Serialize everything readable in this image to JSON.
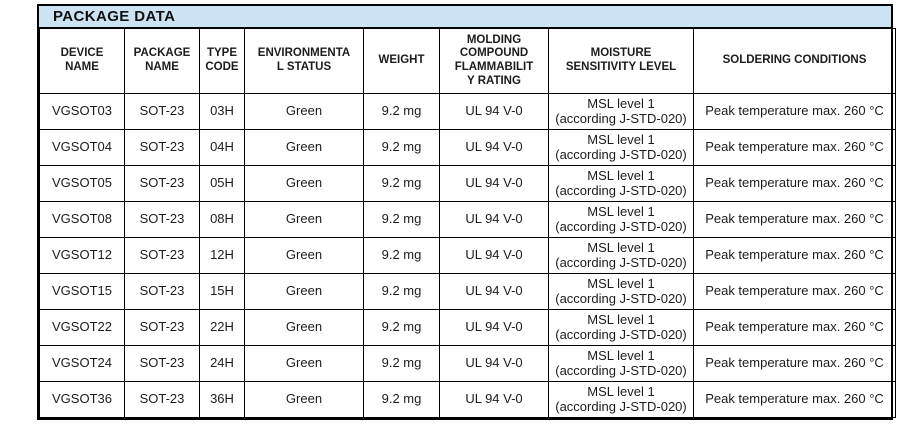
{
  "title": "PACKAGE DATA",
  "colors": {
    "title_bg": "#cbe3f2",
    "border": "#000000",
    "text": "#1c1c1c"
  },
  "table": {
    "columns": [
      {
        "key": "device_name",
        "label": "DEVICE\nNAME"
      },
      {
        "key": "package_name",
        "label": "PACKAGE\nNAME"
      },
      {
        "key": "type_code",
        "label": "TYPE\nCODE"
      },
      {
        "key": "environmental_status",
        "label": "ENVIRONMENTA\nL STATUS"
      },
      {
        "key": "weight",
        "label": "WEIGHT"
      },
      {
        "key": "flammability",
        "label": "MOLDING\nCOMPOUND\nFLAMMABILIT\nY RATING"
      },
      {
        "key": "moisture",
        "label": "MOISTURE\nSENSITIVITY LEVEL"
      },
      {
        "key": "soldering",
        "label": "SOLDERING CONDITIONS"
      }
    ],
    "rows": [
      {
        "device_name": "VGSOT03",
        "package_name": "SOT-23",
        "type_code": "03H",
        "environmental_status": "Green",
        "weight": "9.2 mg",
        "flammability": "UL 94 V-0",
        "moisture": "MSL level 1\n(according J-STD-020)",
        "soldering": "Peak temperature max. 260 °C"
      },
      {
        "device_name": "VGSOT04",
        "package_name": "SOT-23",
        "type_code": "04H",
        "environmental_status": "Green",
        "weight": "9.2 mg",
        "flammability": "UL 94 V-0",
        "moisture": "MSL level 1\n(according J-STD-020)",
        "soldering": "Peak temperature max. 260 °C"
      },
      {
        "device_name": "VGSOT05",
        "package_name": "SOT-23",
        "type_code": "05H",
        "environmental_status": "Green",
        "weight": "9.2 mg",
        "flammability": "UL 94 V-0",
        "moisture": "MSL level 1\n(according J-STD-020)",
        "soldering": "Peak temperature max. 260 °C"
      },
      {
        "device_name": "VGSOT08",
        "package_name": "SOT-23",
        "type_code": "08H",
        "environmental_status": "Green",
        "weight": "9.2 mg",
        "flammability": "UL 94 V-0",
        "moisture": "MSL level 1\n(according J-STD-020)",
        "soldering": "Peak temperature max. 260 °C"
      },
      {
        "device_name": "VGSOT12",
        "package_name": "SOT-23",
        "type_code": "12H",
        "environmental_status": "Green",
        "weight": "9.2 mg",
        "flammability": "UL 94 V-0",
        "moisture": "MSL level 1\n(according J-STD-020)",
        "soldering": "Peak temperature max. 260 °C"
      },
      {
        "device_name": "VGSOT15",
        "package_name": "SOT-23",
        "type_code": "15H",
        "environmental_status": "Green",
        "weight": "9.2 mg",
        "flammability": "UL 94 V-0",
        "moisture": "MSL level 1\n(according J-STD-020)",
        "soldering": "Peak temperature max. 260 °C"
      },
      {
        "device_name": "VGSOT22",
        "package_name": "SOT-23",
        "type_code": "22H",
        "environmental_status": "Green",
        "weight": "9.2 mg",
        "flammability": "UL 94 V-0",
        "moisture": "MSL level 1\n(according J-STD-020)",
        "soldering": "Peak temperature max. 260 °C"
      },
      {
        "device_name": "VGSOT24",
        "package_name": "SOT-23",
        "type_code": "24H",
        "environmental_status": "Green",
        "weight": "9.2 mg",
        "flammability": "UL 94 V-0",
        "moisture": "MSL level 1\n(according J-STD-020)",
        "soldering": "Peak temperature max. 260 °C"
      },
      {
        "device_name": "VGSOT36",
        "package_name": "SOT-23",
        "type_code": "36H",
        "environmental_status": "Green",
        "weight": "9.2 mg",
        "flammability": "UL 94 V-0",
        "moisture": "MSL level 1\n(according J-STD-020)",
        "soldering": "Peak temperature max. 260 °C"
      }
    ]
  }
}
